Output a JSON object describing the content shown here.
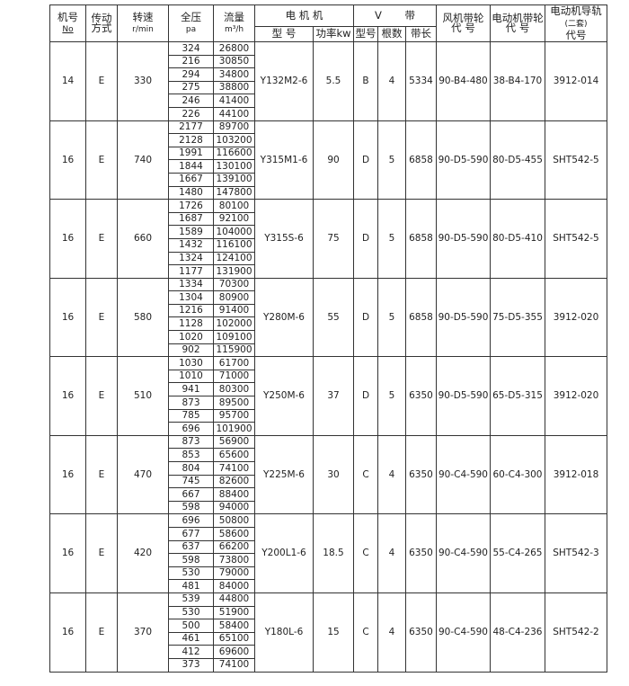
{
  "header": {
    "machine_no": "机号",
    "machine_no_sub": "No",
    "drive": "传动",
    "drive_sub": "方式",
    "speed": "转速",
    "speed_sub": "r/min",
    "pressure": "全压",
    "pressure_sub": "pa",
    "flow": "流量",
    "flow_sub": "m³/h",
    "motor": "电 机 机",
    "motor_model": "型 号",
    "motor_power": "功率kw",
    "vbelt": "V       带",
    "vbelt_type": "型号",
    "vbelt_count": "根数",
    "vbelt_length": "带长",
    "fan_pulley": "风机带轮",
    "fan_pulley_sub": "代  号",
    "motor_pulley": "电动机带轮",
    "motor_pulley_sub": "代  号",
    "rail": "电动机导轨",
    "rail_sub": "(二套)",
    "rail_sub2": "代号"
  },
  "groups": [
    {
      "no": "14",
      "drive": "E",
      "speed": "330",
      "pressure": [
        "324",
        "216",
        "294",
        "275",
        "246",
        "226"
      ],
      "flow": [
        "26800",
        "30850",
        "34800",
        "38800",
        "41400",
        "44100"
      ],
      "model": "Y132M2-6",
      "power": "5.5",
      "belt_type": "B",
      "belt_count": "4",
      "belt_length": "5334",
      "fan_pulley": "90-B4-480",
      "motor_pulley": "38-B4-170",
      "rail": "3912-014"
    },
    {
      "no": "16",
      "drive": "E",
      "speed": "740",
      "pressure": [
        "2177",
        "2128",
        "1991",
        "1844",
        "1667",
        "1480"
      ],
      "flow": [
        "89700",
        "103200",
        "116600",
        "130100",
        "139100",
        "147800"
      ],
      "model": "Y315M1-6",
      "power": "90",
      "belt_type": "D",
      "belt_count": "5",
      "belt_length": "6858",
      "fan_pulley": "90-D5-590",
      "motor_pulley": "80-D5-455",
      "rail": "SHT542-5"
    },
    {
      "no": "16",
      "drive": "E",
      "speed": "660",
      "pressure": [
        "1726",
        "1687",
        "1589",
        "1432",
        "1324",
        "1177"
      ],
      "flow": [
        "80100",
        "92100",
        "104000",
        "116100",
        "124100",
        "131900"
      ],
      "model": "Y315S-6",
      "power": "75",
      "belt_type": "D",
      "belt_count": "5",
      "belt_length": "6858",
      "fan_pulley": "90-D5-590",
      "motor_pulley": "80-D5-410",
      "rail": "SHT542-5"
    },
    {
      "no": "16",
      "drive": "E",
      "speed": "580",
      "pressure": [
        "1334",
        "1304",
        "1216",
        "1128",
        "1020",
        "902"
      ],
      "flow": [
        "70300",
        "80900",
        "91400",
        "102000",
        "109100",
        "115900"
      ],
      "model": "Y280M-6",
      "power": "55",
      "belt_type": "D",
      "belt_count": "5",
      "belt_length": "6858",
      "fan_pulley": "90-D5-590",
      "motor_pulley": "75-D5-355",
      "rail": "3912-020"
    },
    {
      "no": "16",
      "drive": "E",
      "speed": "510",
      "pressure": [
        "1030",
        "1010",
        "941",
        "873",
        "785",
        "696"
      ],
      "flow": [
        "61700",
        "71000",
        "80300",
        "89500",
        "95700",
        "101900"
      ],
      "model": "Y250M-6",
      "power": "37",
      "belt_type": "D",
      "belt_count": "5",
      "belt_length": "6350",
      "fan_pulley": "90-D5-590",
      "motor_pulley": "65-D5-315",
      "rail": "3912-020"
    },
    {
      "no": "16",
      "drive": "E",
      "speed": "470",
      "pressure": [
        "873",
        "853",
        "804",
        "745",
        "667",
        "598"
      ],
      "flow": [
        "56900",
        "65600",
        "74100",
        "82600",
        "88400",
        "94000"
      ],
      "model": "Y225M-6",
      "power": "30",
      "belt_type": "C",
      "belt_count": "4",
      "belt_length": "6350",
      "fan_pulley": "90-C4-590",
      "motor_pulley": "60-C4-300",
      "rail": "3912-018"
    },
    {
      "no": "16",
      "drive": "E",
      "speed": "420",
      "pressure": [
        "696",
        "677",
        "637",
        "598",
        "530",
        "481"
      ],
      "flow": [
        "50800",
        "58600",
        "66200",
        "73800",
        "79000",
        "84000"
      ],
      "model": "Y200L1-6",
      "power": "18.5",
      "belt_type": "C",
      "belt_count": "4",
      "belt_length": "6350",
      "fan_pulley": "90-C4-590",
      "motor_pulley": "55-C4-265",
      "rail": "SHT542-3"
    },
    {
      "no": "16",
      "drive": "E",
      "speed": "370",
      "pressure": [
        "539",
        "530",
        "500",
        "461",
        "412",
        "373"
      ],
      "flow": [
        "44800",
        "51900",
        "58400",
        "65100",
        "69600",
        "74100"
      ],
      "model": "Y180L-6",
      "power": "15",
      "belt_type": "C",
      "belt_count": "4",
      "belt_length": "6350",
      "fan_pulley": "90-C4-590",
      "motor_pulley": "48-C4-236",
      "rail": "SHT542-2"
    }
  ]
}
